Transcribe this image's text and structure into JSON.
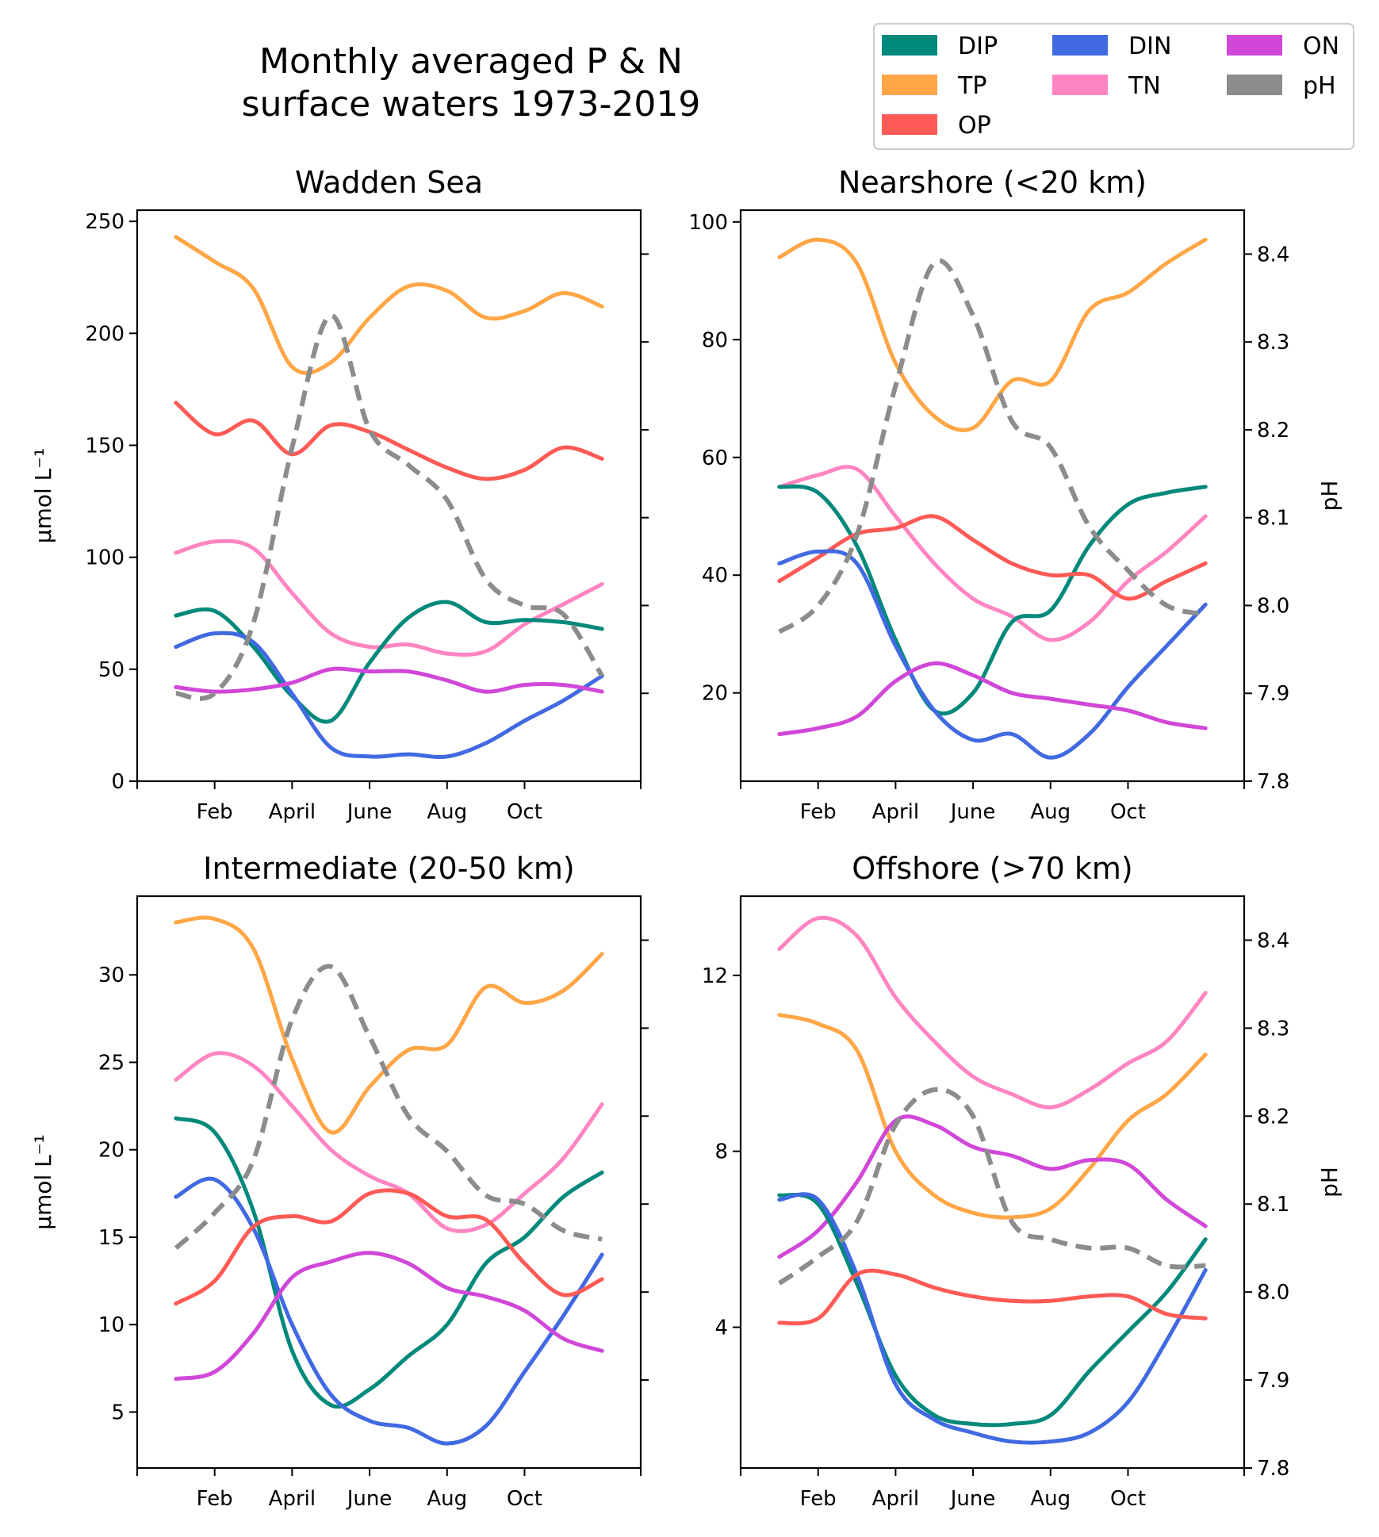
{
  "figure": {
    "title_line1": "Monthly averaged P & N",
    "title_line2": "surface waters 1973-2019"
  },
  "legend": {
    "placement": "upper-right",
    "columns": 3,
    "entries": [
      {
        "key": "DIP",
        "label": "DIP",
        "color": "#00897B"
      },
      {
        "key": "DIN",
        "label": "DIN",
        "color": "#4169E1"
      },
      {
        "key": "ON",
        "label": "ON",
        "color": "#D147D8"
      },
      {
        "key": "TP",
        "label": "TP",
        "color": "#FFA646"
      },
      {
        "key": "TN",
        "label": "TN",
        "color": "#FF85C2"
      },
      {
        "key": "pH",
        "label": "pH",
        "color": "#8C8C8C"
      },
      {
        "key": "OP",
        "label": "OP",
        "color": "#FF5A55"
      }
    ]
  },
  "chart_data": [
    {
      "type": "line",
      "title": "Wadden Sea",
      "ylabel": "μmol L⁻¹",
      "y2label": "",
      "ylim": [
        0,
        255
      ],
      "yticks": [
        0,
        50,
        100,
        150,
        200,
        250
      ],
      "y2lim": [
        7.8,
        8.45
      ],
      "y2ticks": [
        7.9,
        8.0,
        8.1,
        8.2,
        8.3,
        8.4
      ],
      "y2ticklabels": false,
      "x": [
        1,
        2,
        3,
        4,
        5,
        6,
        7,
        8,
        9,
        10,
        11,
        12
      ],
      "xticks": [
        2,
        4,
        6,
        8,
        10
      ],
      "xticklabels": [
        "Feb",
        "April",
        "June",
        "Aug",
        "Oct"
      ],
      "series": [
        {
          "key": "TP",
          "values": [
            243,
            232,
            220,
            185,
            187,
            207,
            221,
            219,
            207,
            210,
            218,
            212
          ]
        },
        {
          "key": "OP",
          "values": [
            169,
            155,
            161,
            146,
            159,
            156,
            148,
            140,
            135,
            139,
            149,
            144
          ]
        },
        {
          "key": "TN",
          "values": [
            102,
            107,
            104,
            84,
            66,
            60,
            61,
            57,
            58,
            70,
            79,
            88
          ]
        },
        {
          "key": "DIP",
          "values": [
            74,
            76,
            60,
            38,
            27,
            53,
            73,
            80,
            71,
            72,
            71,
            68
          ]
        },
        {
          "key": "DIN",
          "values": [
            60,
            66,
            62,
            39,
            15,
            11,
            12,
            11,
            17,
            27,
            36,
            47
          ]
        },
        {
          "key": "ON",
          "values": [
            42,
            40,
            41,
            44,
            50,
            49,
            49,
            45,
            40,
            43,
            43,
            40
          ]
        },
        {
          "key": "pH",
          "axis": "right",
          "dashed": true,
          "values": [
            7.9,
            7.9,
            7.98,
            8.18,
            8.33,
            8.2,
            8.16,
            8.12,
            8.03,
            8.0,
            7.99,
            7.92
          ]
        }
      ]
    },
    {
      "type": "line",
      "title": "Nearshore (<20 km)",
      "ylabel": "",
      "y2label": "pH",
      "ylim": [
        5,
        102
      ],
      "yticks": [
        20,
        40,
        60,
        80,
        100
      ],
      "y2lim": [
        7.8,
        8.45
      ],
      "y2ticks": [
        7.8,
        7.9,
        8.0,
        8.1,
        8.2,
        8.3,
        8.4
      ],
      "y2ticklabels": true,
      "x": [
        1,
        2,
        3,
        4,
        5,
        6,
        7,
        8,
        9,
        10,
        11,
        12
      ],
      "xticks": [
        2,
        4,
        6,
        8,
        10
      ],
      "xticklabels": [
        "Feb",
        "April",
        "June",
        "Aug",
        "Oct"
      ],
      "series": [
        {
          "key": "TP",
          "values": [
            94,
            97,
            93,
            76,
            67,
            65,
            73,
            73,
            85,
            88,
            93,
            97
          ]
        },
        {
          "key": "TN",
          "values": [
            55,
            57,
            58,
            50,
            42,
            36,
            33,
            29,
            32,
            39,
            44,
            50
          ]
        },
        {
          "key": "DIP",
          "values": [
            55,
            54,
            45,
            29,
            17,
            20,
            32,
            34,
            45,
            52,
            54,
            55
          ]
        },
        {
          "key": "OP",
          "values": [
            39,
            43,
            47,
            48,
            50,
            46,
            42,
            40,
            40,
            36,
            39,
            42
          ]
        },
        {
          "key": "DIN",
          "values": [
            42,
            44,
            42,
            28,
            17,
            12,
            13,
            9,
            13,
            21,
            28,
            35
          ]
        },
        {
          "key": "ON",
          "values": [
            13,
            14,
            16,
            22,
            25,
            23,
            20,
            19,
            18,
            17,
            15,
            14
          ]
        },
        {
          "key": "pH",
          "axis": "right",
          "dashed": true,
          "values": [
            7.97,
            8.0,
            8.08,
            8.25,
            8.39,
            8.33,
            8.21,
            8.18,
            8.09,
            8.04,
            8.0,
            7.99
          ]
        }
      ]
    },
    {
      "type": "line",
      "title": "Intermediate (20-50 km)",
      "ylabel": "μmol L⁻¹",
      "y2label": "",
      "ylim": [
        1.8,
        34.5
      ],
      "yticks": [
        5,
        10,
        15,
        20,
        25,
        30
      ],
      "y2lim": [
        7.8,
        8.45
      ],
      "y2ticks": [
        7.9,
        8.0,
        8.1,
        8.2,
        8.3,
        8.4
      ],
      "y2ticklabels": false,
      "x": [
        1,
        2,
        3,
        4,
        5,
        6,
        7,
        8,
        9,
        10,
        11,
        12
      ],
      "xticks": [
        2,
        4,
        6,
        8,
        10
      ],
      "xticklabels": [
        "Feb",
        "April",
        "June",
        "Aug",
        "Oct"
      ],
      "series": [
        {
          "key": "TP",
          "values": [
            33,
            33.2,
            31.5,
            25.2,
            21.0,
            23.6,
            25.7,
            26.0,
            29.3,
            28.4,
            29.1,
            31.2
          ]
        },
        {
          "key": "TN",
          "values": [
            24,
            25.5,
            24.8,
            22.5,
            20.0,
            18.5,
            17.5,
            15.5,
            15.7,
            17.5,
            19.5,
            22.6
          ]
        },
        {
          "key": "DIP",
          "values": [
            21.8,
            21.0,
            16.5,
            8.5,
            5.4,
            6.3,
            8.2,
            10.0,
            13.5,
            15.0,
            17.3,
            18.7
          ]
        },
        {
          "key": "DIN",
          "values": [
            17.3,
            18.3,
            15.5,
            10.0,
            6.0,
            4.5,
            4.1,
            3.2,
            4.2,
            7.3,
            10.5,
            14.0
          ]
        },
        {
          "key": "OP",
          "values": [
            11.2,
            12.5,
            15.6,
            16.2,
            15.9,
            17.5,
            17.5,
            16.2,
            16.0,
            13.5,
            11.7,
            12.6
          ]
        },
        {
          "key": "ON",
          "values": [
            6.9,
            7.3,
            9.5,
            12.7,
            13.6,
            14.1,
            13.5,
            12.1,
            11.6,
            10.8,
            9.2,
            8.5
          ]
        },
        {
          "key": "pH",
          "axis": "right",
          "dashed": true,
          "values": [
            8.05,
            8.09,
            8.15,
            8.31,
            8.37,
            8.29,
            8.2,
            8.16,
            8.11,
            8.1,
            8.07,
            8.06
          ]
        }
      ]
    },
    {
      "type": "line",
      "title": "Offshore (>70 km)",
      "ylabel": "",
      "y2label": "pH",
      "ylim": [
        0.8,
        13.8
      ],
      "yticks": [
        4,
        8,
        12
      ],
      "y2lim": [
        7.8,
        8.45
      ],
      "y2ticks": [
        7.8,
        7.9,
        8.0,
        8.1,
        8.2,
        8.3,
        8.4
      ],
      "y2ticklabels": true,
      "x": [
        1,
        2,
        3,
        4,
        5,
        6,
        7,
        8,
        9,
        10,
        11,
        12
      ],
      "xticks": [
        2,
        4,
        6,
        8,
        10
      ],
      "xticklabels": [
        "Feb",
        "April",
        "June",
        "Aug",
        "Oct"
      ],
      "series": [
        {
          "key": "TN",
          "values": [
            12.6,
            13.3,
            12.9,
            11.5,
            10.5,
            9.7,
            9.3,
            9.0,
            9.4,
            10.0,
            10.5,
            11.6
          ]
        },
        {
          "key": "TP",
          "values": [
            11.1,
            10.9,
            10.3,
            8.0,
            7.0,
            6.6,
            6.5,
            6.7,
            7.6,
            8.7,
            9.3,
            10.2
          ]
        },
        {
          "key": "ON",
          "values": [
            5.6,
            6.2,
            7.3,
            8.7,
            8.6,
            8.1,
            7.9,
            7.6,
            7.8,
            7.7,
            6.9,
            6.3
          ]
        },
        {
          "key": "DIP",
          "values": [
            7.0,
            6.8,
            5.0,
            2.9,
            2.0,
            1.8,
            1.8,
            2.0,
            3.0,
            3.9,
            4.8,
            6.0
          ]
        },
        {
          "key": "DIN",
          "values": [
            6.9,
            6.9,
            5.2,
            2.7,
            1.9,
            1.6,
            1.4,
            1.4,
            1.6,
            2.3,
            3.7,
            5.3
          ]
        },
        {
          "key": "OP",
          "values": [
            4.1,
            4.2,
            5.2,
            5.2,
            4.9,
            4.7,
            4.6,
            4.6,
            4.7,
            4.7,
            4.3,
            4.2
          ]
        },
        {
          "key": "pH",
          "axis": "right",
          "dashed": true,
          "values": [
            8.01,
            8.04,
            8.08,
            8.19,
            8.23,
            8.2,
            8.08,
            8.06,
            8.05,
            8.05,
            8.03,
            8.03
          ]
        }
      ]
    }
  ]
}
